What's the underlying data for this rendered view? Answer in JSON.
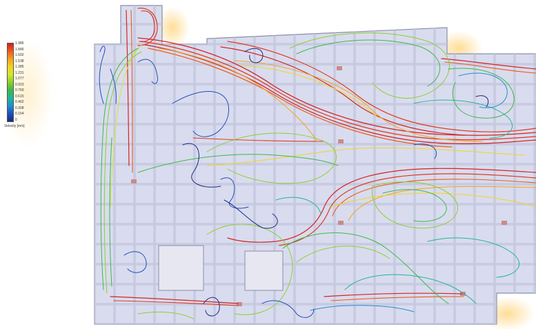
{
  "legend": {
    "title": "Velocity [m/s]",
    "ticks": [
      "1.986",
      "1.846",
      "1.692",
      "1.538",
      "1.385",
      "1.231",
      "1.077",
      "0.923",
      "0.769",
      "0.615",
      "0.462",
      "0.308",
      "0.154",
      "0"
    ]
  },
  "colors": {
    "floor": "#d9dcee",
    "grid": "#b8bcd6",
    "outline": "#8a8ea8",
    "highlight": "#ffd98a"
  }
}
